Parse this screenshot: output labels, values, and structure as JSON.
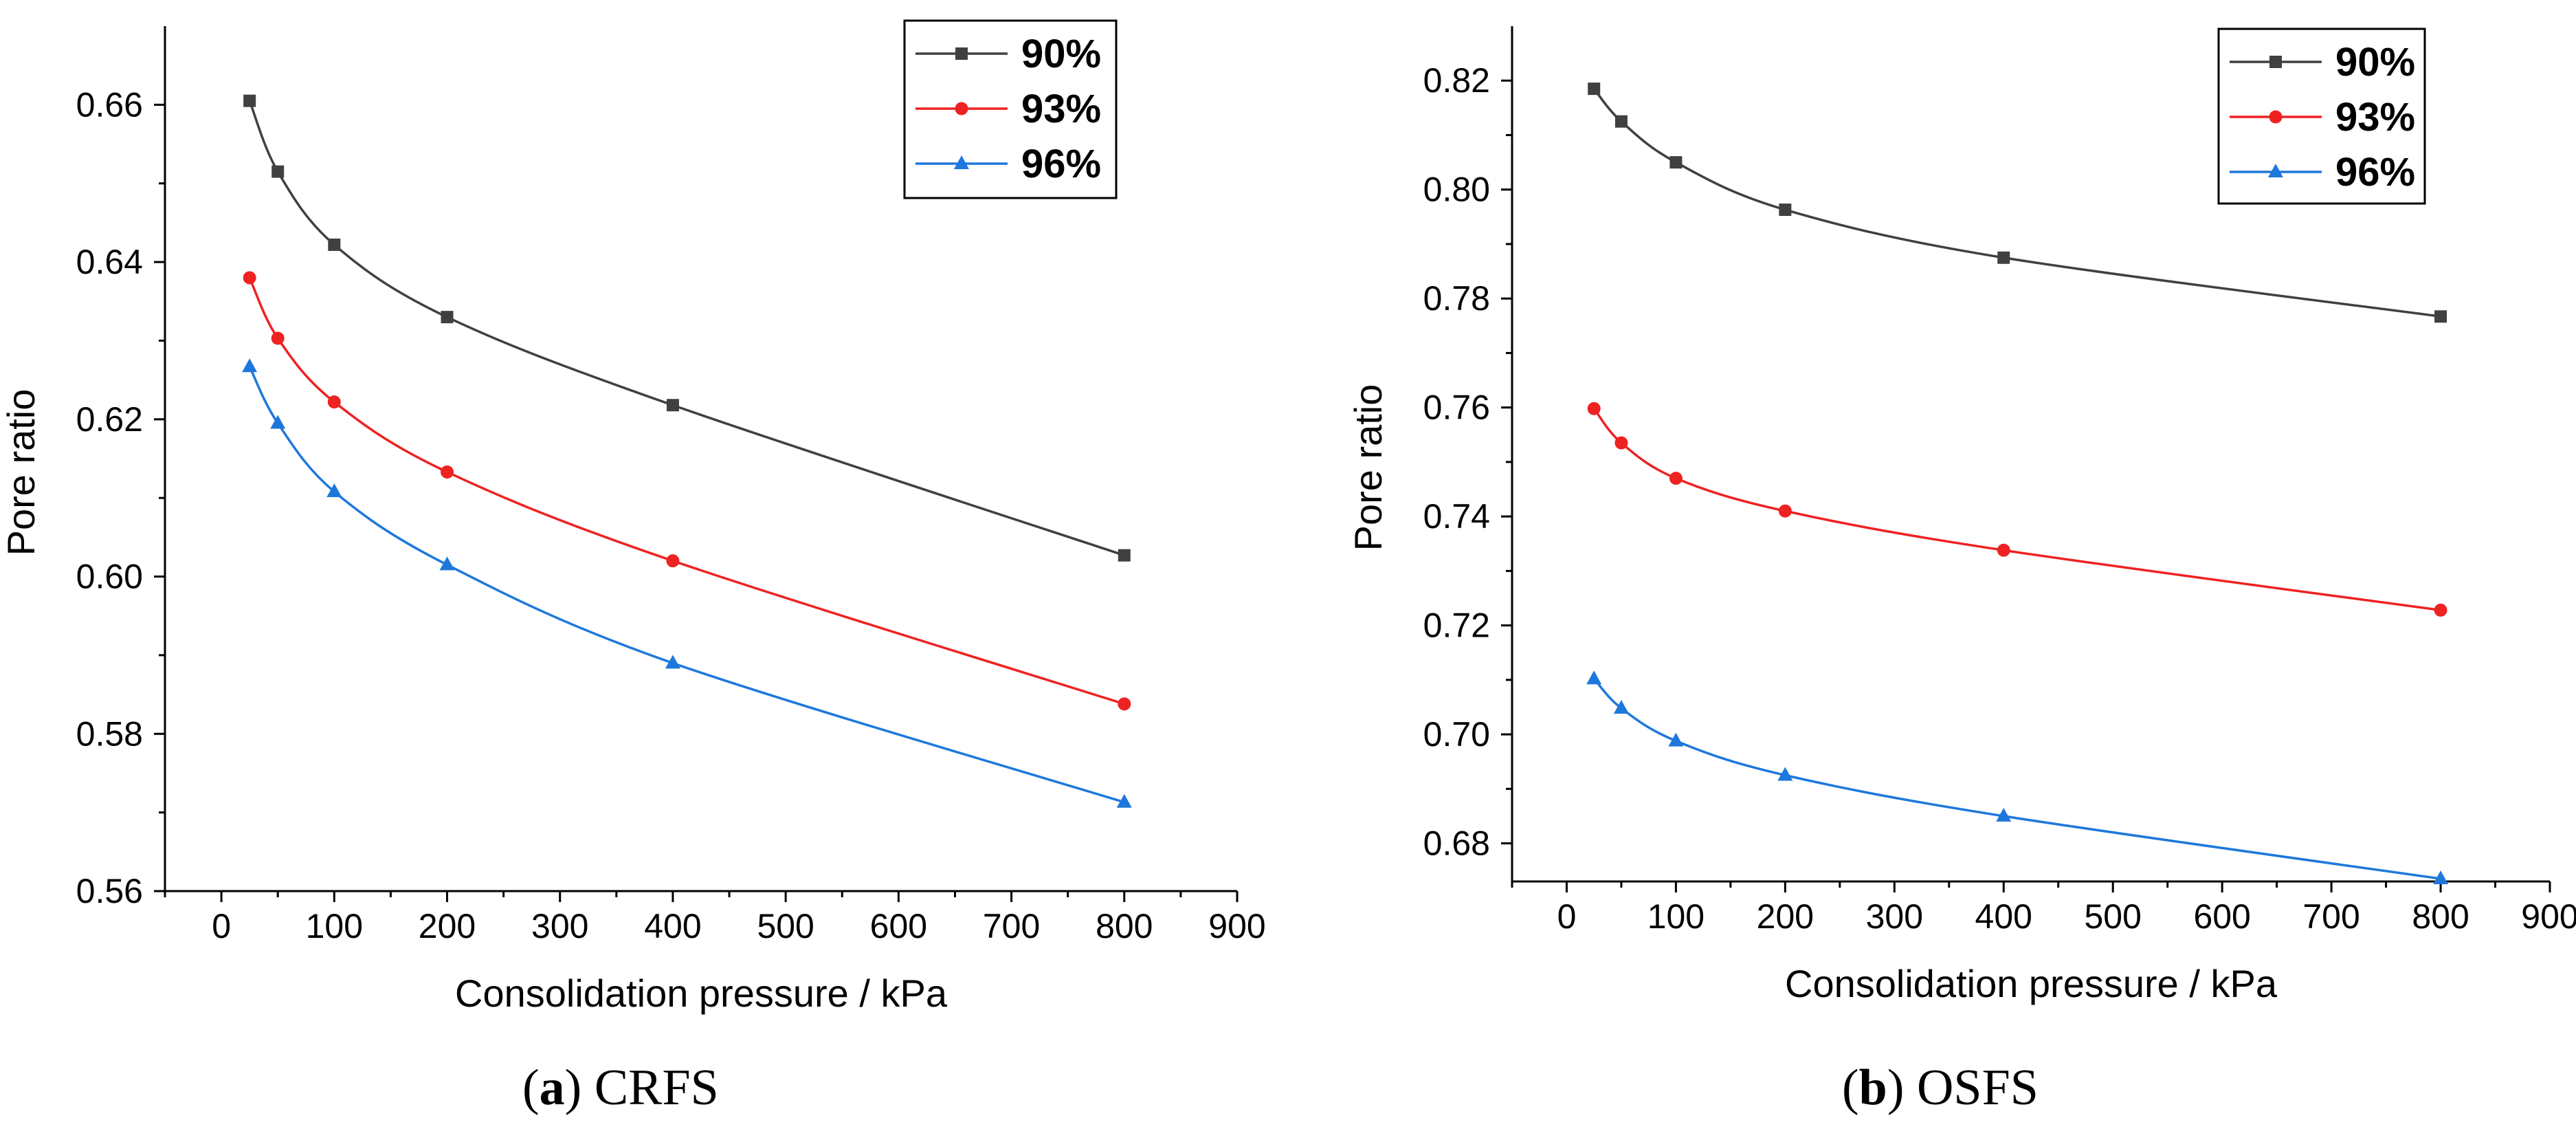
{
  "captions": [
    {
      "letter": "a",
      "text": "CRFS"
    },
    {
      "letter": "b",
      "text": "OSFS"
    }
  ],
  "colors": {
    "s90": "#404040",
    "s93": "#ee2222",
    "s96": "#1e78dc",
    "axis": "#000000"
  },
  "chart_data": [
    {
      "type": "line",
      "panel": "a",
      "title": "",
      "xlabel": "Consolidation pressure / kPa",
      "ylabel": "Pore ratio",
      "xlim": [
        -50,
        900
      ],
      "ylim": [
        0.56,
        0.67
      ],
      "xticks": [
        0,
        100,
        200,
        300,
        400,
        500,
        600,
        700,
        800,
        900
      ],
      "yticks": [
        0.56,
        0.58,
        0.6,
        0.62,
        0.64,
        0.66
      ],
      "ytick_labels": [
        "0.56",
        "0.58",
        "0.60",
        "0.62",
        "0.64",
        "0.66"
      ],
      "legend_position": "top-right",
      "x": [
        25,
        50,
        100,
        200,
        400,
        800
      ],
      "series": [
        {
          "name": "90%",
          "marker": "square",
          "values": [
            0.6605,
            0.6515,
            0.6422,
            0.633,
            0.6218,
            0.6027
          ]
        },
        {
          "name": "93%",
          "marker": "circle",
          "values": [
            0.638,
            0.6303,
            0.6222,
            0.6133,
            0.602,
            0.5838
          ]
        },
        {
          "name": "96%",
          "marker": "triangle",
          "values": [
            0.6267,
            0.6195,
            0.6108,
            0.6015,
            0.589,
            0.5713
          ]
        }
      ]
    },
    {
      "type": "line",
      "panel": "b",
      "title": "",
      "xlabel": "Consolidation pressure / kPa",
      "ylabel": "Pore ratio",
      "xlim": [
        -50,
        900
      ],
      "ylim": [
        0.673,
        0.83
      ],
      "xticks": [
        0,
        100,
        200,
        300,
        400,
        500,
        600,
        700,
        800,
        900
      ],
      "yticks": [
        0.68,
        0.7,
        0.72,
        0.74,
        0.76,
        0.78,
        0.8,
        0.82
      ],
      "ytick_labels": [
        "0.68",
        "0.70",
        "0.72",
        "0.74",
        "0.76",
        "0.78",
        "0.80",
        "0.82"
      ],
      "legend_position": "top-right",
      "x": [
        25,
        50,
        100,
        200,
        400,
        800
      ],
      "series": [
        {
          "name": "90%",
          "marker": "square",
          "values": [
            0.8185,
            0.8125,
            0.805,
            0.7963,
            0.7875,
            0.7767
          ]
        },
        {
          "name": "93%",
          "marker": "circle",
          "values": [
            0.7598,
            0.7535,
            0.747,
            0.741,
            0.7338,
            0.7228
          ]
        },
        {
          "name": "96%",
          "marker": "triangle",
          "values": [
            0.7102,
            0.7048,
            0.6988,
            0.6925,
            0.685,
            0.6735
          ]
        }
      ]
    }
  ]
}
